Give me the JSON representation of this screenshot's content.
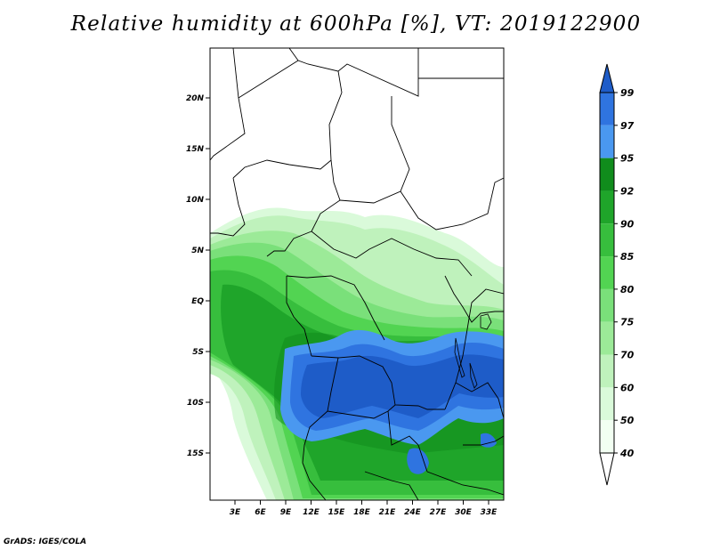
{
  "title": "Relative humidity at 600hPa [%], VT: 2019122900",
  "credit": "GrADS: IGES/COLA",
  "map": {
    "lat_labels": [
      "20N",
      "15N",
      "10N",
      "5N",
      "EQ",
      "5S",
      "10S",
      "15S"
    ],
    "lon_labels": [
      "3E",
      "6E",
      "9E",
      "12E",
      "15E",
      "18E",
      "21E",
      "24E",
      "27E",
      "30E",
      "33E"
    ]
  },
  "colorbar": {
    "levels": [
      "99",
      "97",
      "95",
      "92",
      "90",
      "85",
      "80",
      "75",
      "70",
      "60",
      "50",
      "40"
    ],
    "colors": [
      "#1e5cc8",
      "#2f74e0",
      "#4a98f0",
      "#108c1c",
      "#1fa52a",
      "#37be3d",
      "#52d452",
      "#7ae07a",
      "#9cea98",
      "#bff2bc",
      "#dafada",
      "#f2fff2",
      "#ffffff"
    ]
  }
}
